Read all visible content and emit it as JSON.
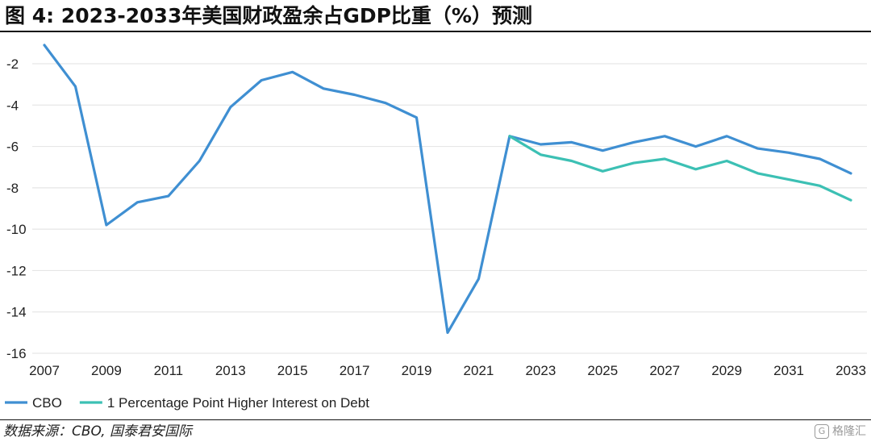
{
  "figure": {
    "title": "图 4:  2023-2033年美国财政盈余占GDP比重（%）预测",
    "source": "数据来源：CBO, 国泰君安国际",
    "watermark": "格隆汇",
    "watermark_icon": "g-logo-icon"
  },
  "chart_data": {
    "type": "line",
    "title": "",
    "xlabel": "",
    "ylabel": "",
    "xlim": [
      2007,
      2033
    ],
    "ylim": [
      -16,
      -1
    ],
    "yticks": [
      -2,
      -4,
      -6,
      -8,
      -10,
      -12,
      -14,
      -16
    ],
    "xticks": [
      2007,
      2009,
      2011,
      2013,
      2015,
      2017,
      2019,
      2021,
      2023,
      2025,
      2027,
      2029,
      2031,
      2033
    ],
    "grid": true,
    "legend_position": "bottom-left",
    "series": [
      {
        "name": "CBO",
        "color": "#3f8fd2",
        "x": [
          2007,
          2008,
          2009,
          2010,
          2011,
          2012,
          2013,
          2014,
          2015,
          2016,
          2017,
          2018,
          2019,
          2020,
          2021,
          2022,
          2023,
          2024,
          2025,
          2026,
          2027,
          2028,
          2029,
          2030,
          2031,
          2032,
          2033
        ],
        "values": [
          -1.1,
          -3.1,
          -9.8,
          -8.7,
          -8.4,
          -6.7,
          -4.1,
          -2.8,
          -2.4,
          -3.2,
          -3.5,
          -3.9,
          -4.6,
          -15.0,
          -12.4,
          -5.5,
          -5.9,
          -5.8,
          -6.2,
          -5.8,
          -5.5,
          -6.0,
          -5.5,
          -6.1,
          -6.3,
          -6.6,
          -7.3
        ]
      },
      {
        "name": "1 Percentage Point Higher Interest on Debt",
        "color": "#3cc0b4",
        "x": [
          2022,
          2023,
          2024,
          2025,
          2026,
          2027,
          2028,
          2029,
          2030,
          2031,
          2032,
          2033
        ],
        "values": [
          -5.5,
          -6.4,
          -6.7,
          -7.2,
          -6.8,
          -6.6,
          -7.1,
          -6.7,
          -7.3,
          -7.6,
          -7.9,
          -8.6
        ]
      }
    ]
  }
}
